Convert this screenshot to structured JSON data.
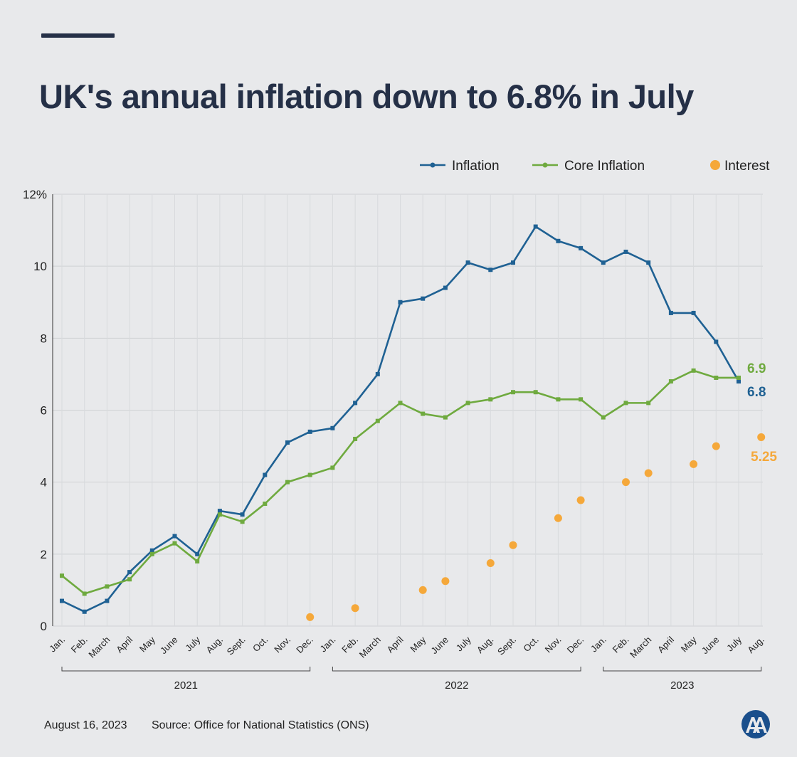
{
  "title": "UK's annual inflation down to 6.8% in July",
  "footer": {
    "date": "August 16, 2023",
    "source": "Source: Office for National Statistics (ONS)"
  },
  "logo": {
    "icon": "aa-logo-icon",
    "color": "#1a4f8c"
  },
  "chart_data": {
    "type": "line",
    "title": "UK's annual inflation down to 6.8% in July",
    "x": [
      "Jan.",
      "Feb.",
      "March",
      "April",
      "May",
      "June",
      "July",
      "Aug.",
      "Sept.",
      "Oct.",
      "Nov.",
      "Dec.",
      "Jan.",
      "Feb.",
      "March",
      "April",
      "May",
      "June",
      "July",
      "Aug.",
      "Sept.",
      "Oct.",
      "Nov.",
      "Dec.",
      "Jan.",
      "Feb.",
      "March",
      "April",
      "May",
      "June",
      "July",
      "Aug."
    ],
    "years": [
      {
        "label": "2021",
        "from": 0,
        "to": 11
      },
      {
        "label": "2022",
        "from": 12,
        "to": 23
      },
      {
        "label": "2023",
        "from": 24,
        "to": 31
      }
    ],
    "yticks": [
      0,
      2,
      4,
      6,
      8,
      10,
      12
    ],
    "ytick_labels": [
      "0",
      "2",
      "4",
      "6",
      "8",
      "10",
      "12%"
    ],
    "ylim": [
      0,
      12
    ],
    "grid": true,
    "legend_position": "top-right",
    "series": [
      {
        "name": "Inflation",
        "color": "#1f6193",
        "style": "line",
        "values": [
          0.7,
          0.4,
          0.7,
          1.5,
          2.1,
          2.5,
          2.0,
          3.2,
          3.1,
          4.2,
          5.1,
          5.4,
          5.5,
          6.2,
          7.0,
          9.0,
          9.1,
          9.4,
          10.1,
          9.9,
          10.1,
          11.1,
          10.7,
          10.5,
          10.1,
          10.4,
          10.1,
          8.7,
          8.7,
          7.9,
          6.8,
          null
        ],
        "end_label": "6.8"
      },
      {
        "name": "Core Inflation",
        "color": "#6faa3f",
        "style": "line",
        "values": [
          1.4,
          0.9,
          1.1,
          1.3,
          2.0,
          2.3,
          1.8,
          3.1,
          2.9,
          3.4,
          4.0,
          4.2,
          4.4,
          5.2,
          5.7,
          6.2,
          5.9,
          5.8,
          6.2,
          6.3,
          6.5,
          6.5,
          6.3,
          6.3,
          5.8,
          6.2,
          6.2,
          6.8,
          7.1,
          6.9,
          6.9,
          null
        ],
        "end_label": "6.9"
      },
      {
        "name": "Interest",
        "color": "#f5a83a",
        "style": "dots",
        "values": [
          null,
          null,
          null,
          null,
          null,
          null,
          null,
          null,
          null,
          null,
          null,
          0.25,
          null,
          0.5,
          null,
          null,
          1.0,
          1.25,
          null,
          1.75,
          2.25,
          null,
          3.0,
          3.5,
          null,
          4.0,
          4.25,
          null,
          4.5,
          5.0,
          null,
          5.25
        ],
        "end_label": "5.25"
      }
    ]
  }
}
